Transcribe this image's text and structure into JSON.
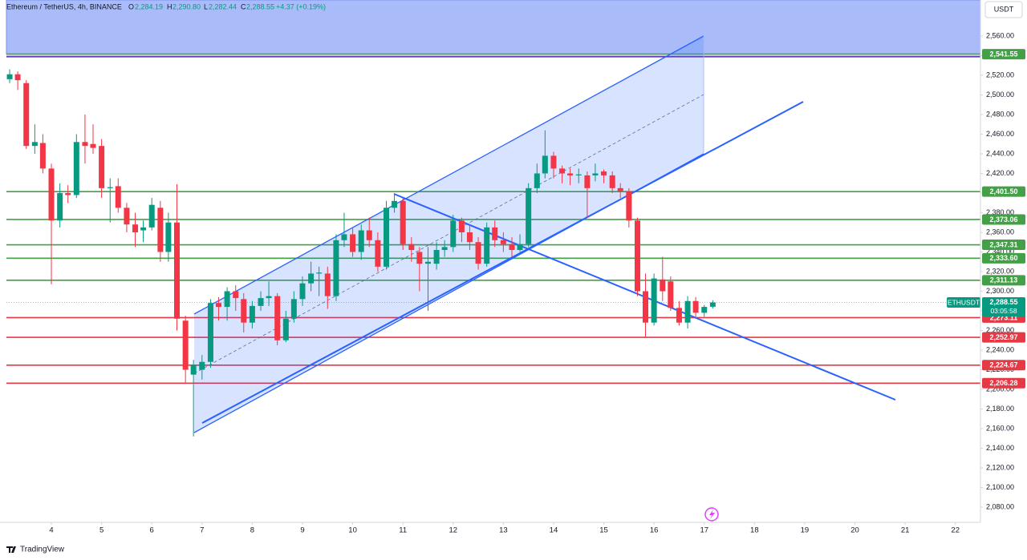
{
  "chart_data": {
    "type": "candlestick",
    "header": {
      "symbol": "Ethereum / TetherUS, 4h, BINANCE",
      "o_label": "O",
      "open": "2,284.19",
      "h_label": "H",
      "high": "2,290.80",
      "l_label": "L",
      "low": "2,282.44",
      "c_label": "C",
      "close": "2,288.55",
      "change": "+4.37 (+0.19%)"
    },
    "currency": "USDT",
    "brand": "TradingView",
    "up_color": "#089981",
    "down_color": "#f23645",
    "x": [
      3.17,
      3.33,
      3.5,
      3.67,
      3.83,
      4,
      4.17,
      4.33,
      4.5,
      4.67,
      4.83,
      5,
      5.17,
      5.33,
      5.5,
      5.67,
      5.83,
      6,
      6.17,
      6.33,
      6.5,
      6.67,
      6.83,
      7,
      7.17,
      7.33,
      7.5,
      7.67,
      7.83,
      8,
      8.17,
      8.33,
      8.5,
      8.67,
      8.83,
      9,
      9.17,
      9.33,
      9.5,
      9.67,
      9.83,
      10,
      10.17,
      10.33,
      10.5,
      10.67,
      10.83,
      11,
      11.17,
      11.33,
      11.5,
      11.67,
      11.83,
      12,
      12.17,
      12.33,
      12.5,
      12.67,
      12.83,
      13,
      13.17,
      13.33,
      13.5,
      13.67,
      13.83,
      14,
      14.17,
      14.33,
      14.5,
      14.67,
      14.83,
      15,
      15.17,
      15.33,
      15.5,
      15.67,
      15.83,
      16,
      16.17,
      16.33,
      16.5,
      16.67,
      16.83,
      17,
      17.17
    ],
    "open": [
      2516,
      2521,
      2512,
      2448,
      2451,
      2425,
      2372,
      2400,
      2398,
      2452,
      2450,
      2448,
      2405,
      2407,
      2385,
      2368,
      2362,
      2365,
      2385,
      2340,
      2370,
      2270,
      2215,
      2220,
      2228,
      2288,
      2284,
      2300,
      2292,
      2268,
      2285,
      2293,
      2295,
      2250,
      2272,
      2292,
      2308,
      2318,
      2318,
      2295,
      2352,
      2358,
      2340,
      2362,
      2352,
      2325,
      2385,
      2392,
      2348,
      2340,
      2328,
      2328,
      2342,
      2345,
      2372,
      2360,
      2350,
      2328,
      2365,
      2352,
      2348,
      2342,
      2348,
      2405,
      2420,
      2438,
      2425,
      2420,
      2418,
      2418,
      2418,
      2422,
      2418,
      2405,
      2402,
      2372,
      2300,
      2268,
      2312,
      2310,
      2283,
      2268,
      2290,
      2278,
      2284.19
    ],
    "high": [
      2526,
      2524,
      2515,
      2470,
      2460,
      2430,
      2410,
      2408,
      2460,
      2480,
      2470,
      2455,
      2415,
      2415,
      2390,
      2380,
      2372,
      2395,
      2392,
      2380,
      2409,
      2275,
      2230,
      2235,
      2292,
      2294,
      2304,
      2306,
      2298,
      2290,
      2300,
      2310,
      2298,
      2280,
      2300,
      2315,
      2330,
      2325,
      2325,
      2358,
      2380,
      2365,
      2368,
      2375,
      2360,
      2392,
      2400,
      2395,
      2355,
      2345,
      2345,
      2350,
      2352,
      2378,
      2375,
      2368,
      2355,
      2370,
      2372,
      2360,
      2355,
      2358,
      2410,
      2430,
      2464,
      2442,
      2428,
      2425,
      2425,
      2422,
      2430,
      2424,
      2422,
      2410,
      2405,
      2375,
      2318,
      2318,
      2335,
      2315,
      2290,
      2295,
      2294,
      2286,
      2290.8
    ],
    "low": [
      2512,
      2505,
      2445,
      2440,
      2420,
      2307,
      2365,
      2390,
      2395,
      2430,
      2440,
      2395,
      2370,
      2380,
      2360,
      2345,
      2350,
      2362,
      2330,
      2330,
      2260,
      2207,
      2152,
      2210,
      2222,
      2270,
      2270,
      2280,
      2258,
      2262,
      2280,
      2285,
      2245,
      2248,
      2268,
      2285,
      2300,
      2295,
      2282,
      2290,
      2345,
      2335,
      2332,
      2345,
      2320,
      2322,
      2380,
      2342,
      2330,
      2300,
      2280,
      2322,
      2335,
      2340,
      2350,
      2342,
      2322,
      2325,
      2345,
      2340,
      2335,
      2340,
      2345,
      2400,
      2415,
      2415,
      2410,
      2408,
      2410,
      2375,
      2412,
      2410,
      2400,
      2395,
      2365,
      2295,
      2253,
      2265,
      2290,
      2280,
      2265,
      2262,
      2272,
      2274,
      2282.44
    ],
    "close": [
      2521,
      2515,
      2448,
      2452,
      2425,
      2372,
      2400,
      2398,
      2452,
      2448,
      2446,
      2405,
      2406,
      2385,
      2368,
      2360,
      2365,
      2388,
      2340,
      2370,
      2272,
      2220,
      2225,
      2228,
      2288,
      2284,
      2300,
      2293,
      2268,
      2285,
      2293,
      2295,
      2250,
      2272,
      2292,
      2308,
      2318,
      2319,
      2295,
      2352,
      2358,
      2340,
      2362,
      2352,
      2325,
      2385,
      2392,
      2348,
      2342,
      2328,
      2330,
      2342,
      2345,
      2372,
      2360,
      2350,
      2328,
      2365,
      2352,
      2348,
      2342,
      2348,
      2405,
      2420,
      2438,
      2425,
      2420,
      2418,
      2419,
      2405,
      2420,
      2418,
      2405,
      2402,
      2372,
      2300,
      2268,
      2313,
      2300,
      2283,
      2268,
      2290,
      2278,
      2284,
      2288.55
    ],
    "xlim": [
      3.105,
      22.5
    ],
    "xticks": [
      4,
      5,
      6,
      7,
      8,
      9,
      10,
      11,
      12,
      13,
      14,
      15,
      16,
      17,
      18,
      19,
      20,
      21,
      22
    ],
    "ylim": [
      2064.5,
      2596.7
    ],
    "yticks": [
      {
        "value": 2080,
        "label": "2,080.00"
      },
      {
        "value": 2100,
        "label": "2,100.00"
      },
      {
        "value": 2120,
        "label": "2,120.00"
      },
      {
        "value": 2140,
        "label": "2,140.00"
      },
      {
        "value": 2160,
        "label": "2,160.00"
      },
      {
        "value": 2180,
        "label": "2,180.00"
      },
      {
        "value": 2200,
        "label": "2,200.00"
      },
      {
        "value": 2220,
        "label": "2,220.00"
      },
      {
        "value": 2240,
        "label": "2,240.00"
      },
      {
        "value": 2260,
        "label": "2,260.00"
      },
      {
        "value": 2280,
        "label": "2,280.00"
      },
      {
        "value": 2300,
        "label": "2,300.00"
      },
      {
        "value": 2320,
        "label": "2,320.00"
      },
      {
        "value": 2340,
        "label": "2,340.00"
      },
      {
        "value": 2360,
        "label": "2,360.00"
      },
      {
        "value": 2380,
        "label": "2,380.00"
      },
      {
        "value": 2400,
        "label": "2,400.00"
      },
      {
        "value": 2420,
        "label": "2,420.00"
      },
      {
        "value": 2440,
        "label": "2,440.00"
      },
      {
        "value": 2460,
        "label": "2,460.00"
      },
      {
        "value": 2480,
        "label": "2,480.00"
      },
      {
        "value": 2500,
        "label": "2,500.00"
      },
      {
        "value": 2520,
        "label": "2,520.00"
      },
      {
        "value": 2540,
        "label": "2,540.00"
      },
      {
        "value": 2560,
        "label": "2,560.00"
      }
    ],
    "levels": [
      {
        "value": 2541.55,
        "label": "2,541.55",
        "color": "#43a047"
      },
      {
        "value": 2401.5,
        "label": "2,401.50",
        "color": "#43a047"
      },
      {
        "value": 2373.06,
        "label": "2,373.06",
        "color": "#43a047"
      },
      {
        "value": 2347.31,
        "label": "2,347.31",
        "color": "#43a047"
      },
      {
        "value": 2333.6,
        "label": "2,333.60",
        "color": "#43a047"
      },
      {
        "value": 2311.13,
        "label": "2,311.13",
        "color": "#43a047"
      },
      {
        "value": 2273.11,
        "label": "2,273.11",
        "color": "#e53945"
      },
      {
        "value": 2252.97,
        "label": "2,252.97",
        "color": "#e53945"
      },
      {
        "value": 2224.67,
        "label": "2,224.67",
        "color": "#e53945"
      },
      {
        "value": 2206.28,
        "label": "2,206.28",
        "color": "#e53945"
      }
    ],
    "zone_color": "#a9bcf9",
    "last_price": {
      "value": 2288.55,
      "label": "2,288.55",
      "symbol": "ETHUSDT",
      "countdown": "03:05:58",
      "color": "#089981"
    }
  }
}
